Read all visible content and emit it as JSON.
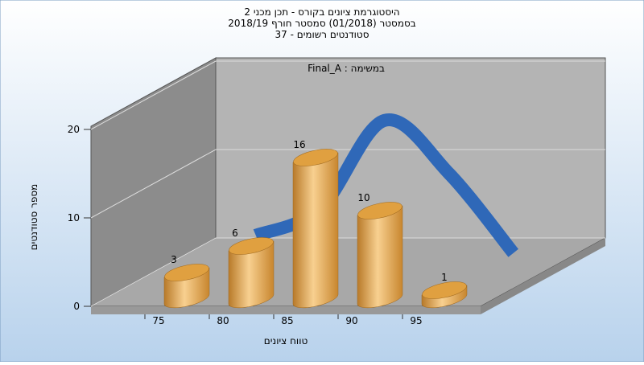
{
  "chart_data": {
    "type": "bar",
    "title": [
      "היסטוגרמת ציונים בקורס - תכן מכני 2",
      "בסמסטר  (01/2018)  סמסטר חורף 2018/19",
      "סטודנטים רשומים - 37"
    ],
    "annotation": "Final_A : במשימה",
    "x_label": "טווח ציונים",
    "y_label": "מספר סטודנטים",
    "categories": [
      "75",
      "80",
      "85",
      "90",
      "95"
    ],
    "values": [
      3,
      6,
      16,
      10,
      1
    ],
    "color": "#e0a040",
    "line_color": "#2f68b8",
    "ylim": [
      0,
      20
    ],
    "yticks": [
      0,
      10,
      20
    ],
    "grid": true
  }
}
